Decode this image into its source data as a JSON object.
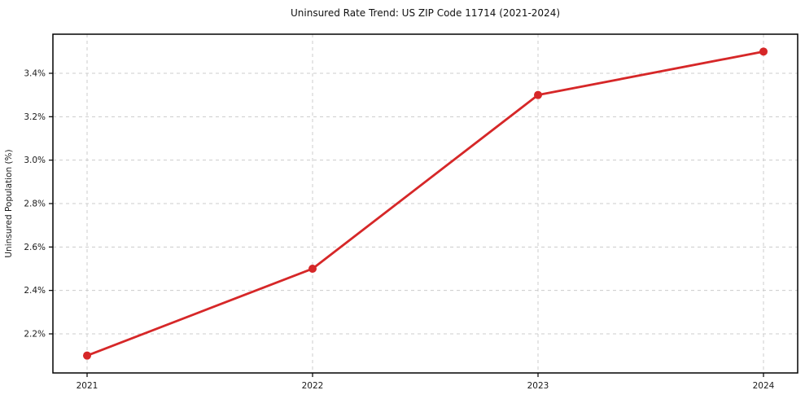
{
  "chart_data": {
    "type": "line",
    "title": "Uninsured Rate Trend: US ZIP Code 11714 (2021-2024)",
    "xlabel": "",
    "ylabel": "Uninsured Population (%)",
    "x": [
      2021,
      2022,
      2023,
      2024
    ],
    "x_tick_labels": [
      "2021",
      "2022",
      "2023",
      "2024"
    ],
    "series": [
      {
        "name": "Uninsured Population (%)",
        "values": [
          2.1,
          2.5,
          3.3,
          3.5
        ],
        "color": "#d62728"
      }
    ],
    "y_ticks": [
      2.2,
      2.4,
      2.6,
      2.8,
      3.0,
      3.2,
      3.4
    ],
    "y_tick_labels": [
      "2.2%",
      "2.4%",
      "2.6%",
      "2.8%",
      "3.0%",
      "3.2%",
      "3.4%"
    ],
    "ylim": [
      2.02,
      3.58
    ],
    "grid": true,
    "grid_style": "dashed",
    "legend": "none",
    "marker": "circle",
    "colors": {
      "line": "#d62728",
      "grid": "#cccccc",
      "axis": "#000000",
      "text": "#1a1a1a",
      "background": "#ffffff"
    }
  }
}
